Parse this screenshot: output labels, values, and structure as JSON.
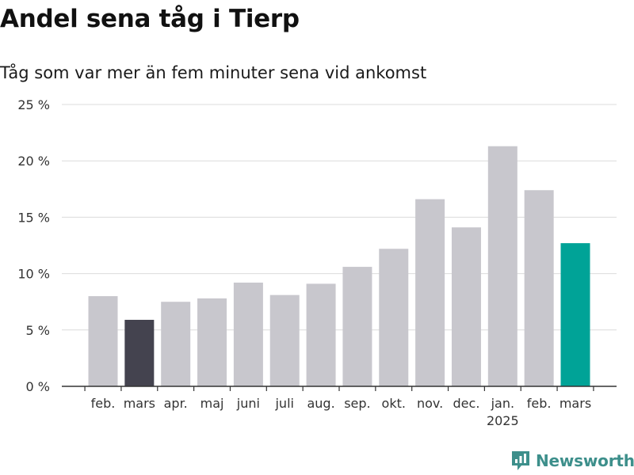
{
  "header": {
    "title": "Andel sena tåg i Tierp",
    "subtitle": "Tåg som var mer än fem minuter sena vid ankomst"
  },
  "brand": {
    "name": "Newsworthy",
    "color": "#3d8f8b"
  },
  "colors": {
    "default_bar": "#c8c7cd",
    "previous_year_bar": "#44434f",
    "current_bar": "#00a397",
    "grid": "#dcdcdc",
    "axis": "#333333"
  },
  "chart_data": {
    "type": "bar",
    "title": "Andel sena tåg i Tierp",
    "subtitle": "Tåg som var mer än fem minuter sena vid ankomst",
    "categories": [
      "feb.",
      "mars",
      "apr.",
      "maj",
      "juni",
      "juli",
      "aug.",
      "sep.",
      "okt.",
      "nov.",
      "dec.",
      "jan.",
      "feb.",
      "mars"
    ],
    "year_labels": [
      "",
      "",
      "",
      "",
      "",
      "",
      "",
      "",
      "",
      "",
      "",
      "2025",
      "",
      ""
    ],
    "values": [
      8.0,
      5.9,
      7.5,
      7.8,
      9.2,
      8.1,
      9.1,
      10.6,
      12.2,
      16.6,
      14.1,
      21.3,
      17.4,
      12.7
    ],
    "highlight": [
      "default",
      "previous_year",
      "default",
      "default",
      "default",
      "default",
      "default",
      "default",
      "default",
      "default",
      "default",
      "default",
      "default",
      "current"
    ],
    "ylim": [
      0,
      25
    ],
    "yticks": [
      0,
      5,
      10,
      15,
      20,
      25
    ],
    "ytick_labels": [
      "0 %",
      "5 %",
      "10 %",
      "15 %",
      "20 %",
      "25 %"
    ],
    "xlabel": "",
    "ylabel": "",
    "grid": true
  }
}
